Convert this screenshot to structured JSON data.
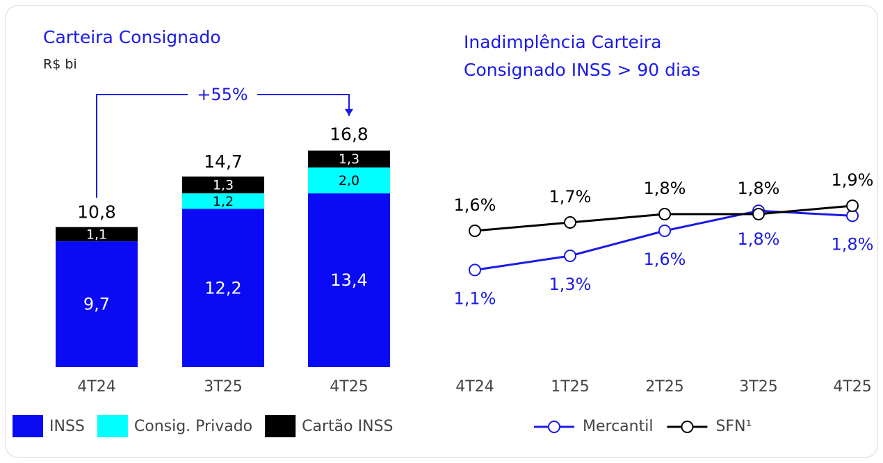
{
  "chart_data": [
    {
      "type": "stacked_bar",
      "title": "Carteira Consignado",
      "subtitle": "R$ bi",
      "categories": [
        "4T24",
        "3T25",
        "4T25"
      ],
      "series": [
        {
          "name": "INSS",
          "color": "#0a0af5",
          "values": [
            9.7,
            12.2,
            13.4
          ],
          "value_labels": [
            "9,7",
            "12,2",
            "13,4"
          ]
        },
        {
          "name": "Consig. Privado",
          "color": "#00ffff",
          "values": [
            null,
            1.2,
            2.0
          ],
          "value_labels": [
            null,
            "1,2",
            "2,0"
          ]
        },
        {
          "name": "Cartão INSS",
          "color": "#000000",
          "values": [
            1.1,
            1.3,
            1.3
          ],
          "value_labels": [
            "1,1",
            "1,3",
            "1,3"
          ]
        }
      ],
      "totals": [
        10.8,
        14.7,
        16.8
      ],
      "total_labels": [
        "10,8",
        "14,7",
        "16,8"
      ],
      "annotation": "+55%",
      "ylim": [
        0,
        17
      ]
    },
    {
      "type": "line",
      "title": "Inadimplência Carteira Consignado INSS > 90 dias",
      "categories": [
        "4T24",
        "1T25",
        "2T25",
        "3T25",
        "4T25"
      ],
      "series": [
        {
          "name": "Mercantil",
          "color": "#1a1ae6",
          "values": [
            1.13,
            1.3,
            1.6,
            1.84,
            1.78
          ],
          "value_labels": [
            "1,1%",
            "1,3%",
            "1,6%",
            "1,8%",
            "1,8%"
          ]
        },
        {
          "name": "SFN¹",
          "color": "#000000",
          "values": [
            1.6,
            1.7,
            1.8,
            1.8,
            1.9
          ],
          "value_labels": [
            "1,6%",
            "1,7%",
            "1,8%",
            "1,8%",
            "1,9%"
          ]
        }
      ],
      "ylim": [
        1.0,
        2.0
      ]
    }
  ]
}
